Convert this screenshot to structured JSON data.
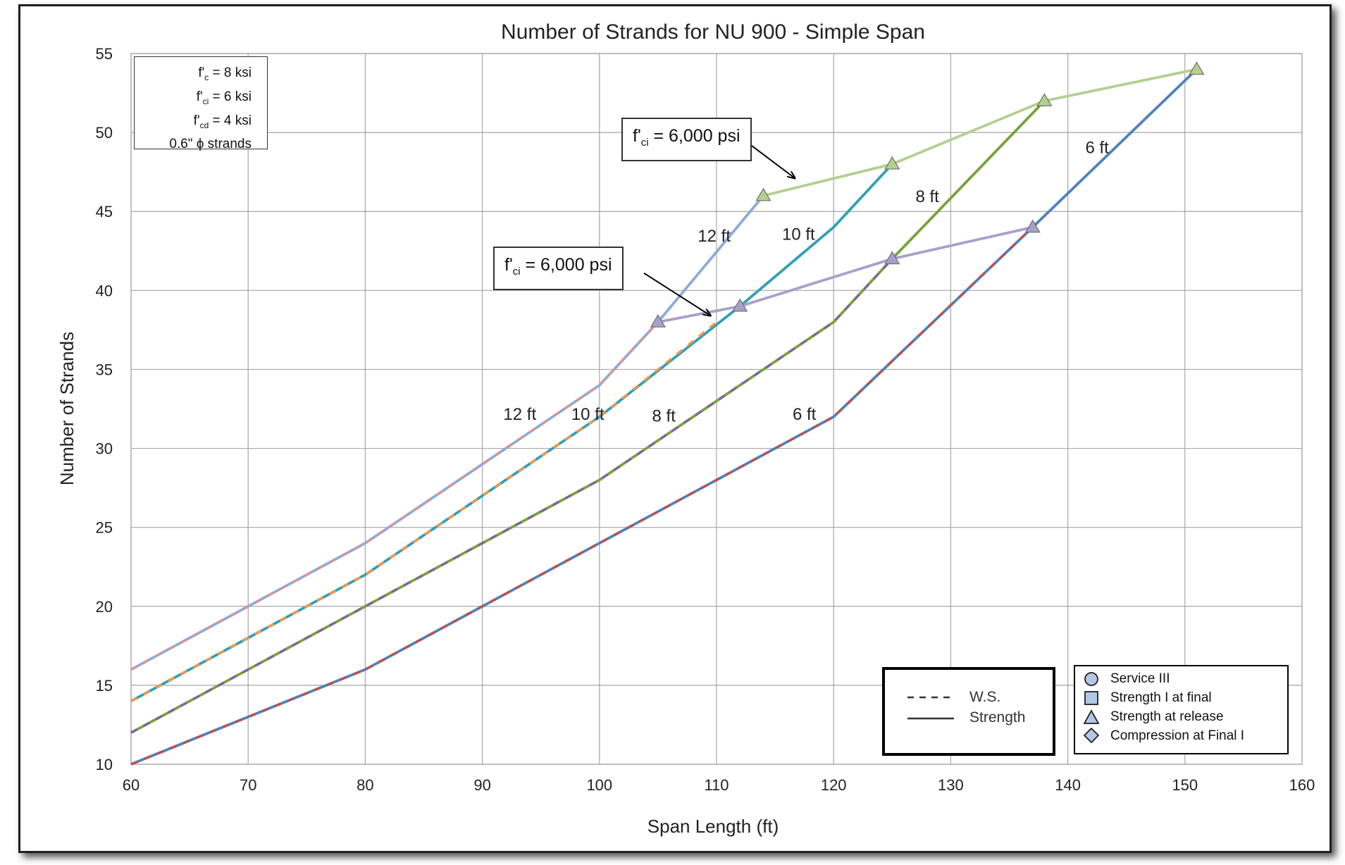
{
  "chart_data": {
    "type": "line",
    "title": "Number of Strands for NU 900 - Simple Span",
    "xlabel": "Span Length (ft)",
    "ylabel": "Number of Strands",
    "xlim": [
      60,
      160
    ],
    "ylim": [
      10,
      55
    ],
    "xticks": [
      60,
      70,
      80,
      90,
      100,
      110,
      120,
      130,
      140,
      150,
      160
    ],
    "yticks": [
      10,
      15,
      20,
      25,
      30,
      35,
      40,
      45,
      50,
      55
    ],
    "grid": true,
    "series": [
      {
        "name": "12 ft",
        "style": "solid",
        "color": "#8eaadb",
        "points": [
          [
            60,
            16
          ],
          [
            70,
            20
          ],
          [
            80,
            24
          ],
          [
            90,
            29
          ],
          [
            100,
            34
          ],
          [
            105,
            38
          ],
          [
            114,
            46
          ]
        ]
      },
      {
        "name": "12 ft",
        "style": "dashed",
        "color": "#d99594",
        "points": [
          [
            60,
            16
          ],
          [
            70,
            20
          ],
          [
            80,
            24
          ],
          [
            90,
            29
          ],
          [
            100,
            34
          ],
          [
            105,
            38
          ]
        ]
      },
      {
        "name": "10 ft",
        "style": "solid",
        "color": "#31a0b6",
        "points": [
          [
            60,
            14
          ],
          [
            70,
            18
          ],
          [
            80,
            22
          ],
          [
            90,
            27
          ],
          [
            100,
            32
          ],
          [
            112,
            39
          ],
          [
            120,
            44
          ],
          [
            125,
            48
          ]
        ]
      },
      {
        "name": "10 ft",
        "style": "dashed",
        "color": "#f79646",
        "points": [
          [
            60,
            14
          ],
          [
            70,
            18
          ],
          [
            80,
            22
          ],
          [
            90,
            27
          ],
          [
            100,
            32
          ],
          [
            110,
            38
          ]
        ]
      },
      {
        "name": "8 ft",
        "style": "solid",
        "color": "#77a33c",
        "points": [
          [
            60,
            12
          ],
          [
            70,
            16
          ],
          [
            80,
            20
          ],
          [
            90,
            24
          ],
          [
            100,
            28
          ],
          [
            110,
            33
          ],
          [
            120,
            38
          ],
          [
            125,
            42
          ],
          [
            138,
            52
          ]
        ]
      },
      {
        "name": "8 ft",
        "style": "dashed",
        "color": "#8064a2",
        "points": [
          [
            60,
            12
          ],
          [
            70,
            16
          ],
          [
            80,
            20
          ],
          [
            90,
            24
          ],
          [
            100,
            28
          ],
          [
            110,
            33
          ],
          [
            120,
            38
          ],
          [
            125,
            42
          ]
        ]
      },
      {
        "name": "6 ft",
        "style": "solid",
        "color": "#4f81bd",
        "points": [
          [
            60,
            10
          ],
          [
            70,
            13
          ],
          [
            80,
            16
          ],
          [
            90,
            20
          ],
          [
            100,
            24
          ],
          [
            110,
            28
          ],
          [
            120,
            32
          ],
          [
            137,
            44
          ],
          [
            151,
            54
          ]
        ]
      },
      {
        "name": "6 ft",
        "style": "dashed",
        "color": "#c0504d",
        "points": [
          [
            60,
            10
          ],
          [
            70,
            13
          ],
          [
            80,
            16
          ],
          [
            90,
            20
          ],
          [
            100,
            24
          ],
          [
            110,
            28
          ],
          [
            120,
            32
          ],
          [
            137,
            44
          ]
        ]
      },
      {
        "name": "Strength at release",
        "style": "solid",
        "color": "#a8a0cc",
        "marker": "triangle",
        "points": [
          [
            105,
            38
          ],
          [
            112,
            39
          ],
          [
            125,
            42
          ],
          [
            137,
            44
          ]
        ]
      },
      {
        "name": "Strength at release",
        "style": "solid",
        "color": "#b5cf8f",
        "marker": "triangle",
        "points": [
          [
            114,
            46
          ],
          [
            125,
            48
          ],
          [
            138,
            52
          ],
          [
            151,
            54
          ]
        ]
      }
    ],
    "annotations": [
      {
        "text": "12 ft",
        "x": 93.2,
        "y": 31.8
      },
      {
        "text": "10 ft",
        "x": 99,
        "y": 31.8
      },
      {
        "text": "8 ft",
        "x": 105.5,
        "y": 31.7
      },
      {
        "text": "6 ft",
        "x": 117.5,
        "y": 31.8
      },
      {
        "text": "12 ft",
        "x": 109.8,
        "y": 43.1
      },
      {
        "text": "10 ft",
        "x": 117,
        "y": 43.2
      },
      {
        "text": "8 ft",
        "x": 128,
        "y": 45.6
      },
      {
        "text": "6 ft",
        "x": 142.5,
        "y": 48.7
      }
    ],
    "arrows": [
      {
        "from": [
          111.5,
          50.0
        ],
        "to": [
          116.7,
          47.1
        ]
      },
      {
        "from": [
          103.8,
          41.1
        ],
        "to": [
          109.5,
          38.4
        ]
      }
    ],
    "text_boxes": {
      "properties": [
        "f'c = 8 ksi",
        "f'ci = 6 ksi",
        "f'cd = 4 ksi",
        "0.6\" ϕ strands"
      ],
      "callouts": [
        "f'ci = 6,000 psi",
        "f'ci = 6,000 psi"
      ]
    },
    "legend": {
      "line_styles": [
        {
          "label": "W.S.",
          "style": "dashed"
        },
        {
          "label": "Strength",
          "style": "solid"
        }
      ],
      "markers": [
        {
          "label": "Service III",
          "marker": "circle"
        },
        {
          "label": "Strength I at final",
          "marker": "square"
        },
        {
          "label": "Strength at release",
          "marker": "triangle"
        },
        {
          "label": "Compression at Final I",
          "marker": "diamond"
        }
      ]
    }
  },
  "notes": {
    "prop1_main": "f'",
    "prop1_sub": "c",
    "prop1_rest": " = 8 ksi",
    "prop2_main": "f'",
    "prop2_sub": "ci",
    "prop2_rest": " = 6 ksi",
    "prop3_main": "f'",
    "prop3_sub": "cd",
    "prop3_rest": " = 4 ksi",
    "prop4": "0.6\" ϕ strands",
    "callout_main": "f'",
    "callout_sub": "ci",
    "callout_rest": " = 6,000 psi"
  },
  "legend_text": {
    "ws": "W.S.",
    "strength": "Strength",
    "service3": "Service III",
    "strength1_final": "Strength I at final",
    "strength_release": "Strength at release",
    "compression_final": "Compression at Final I"
  }
}
